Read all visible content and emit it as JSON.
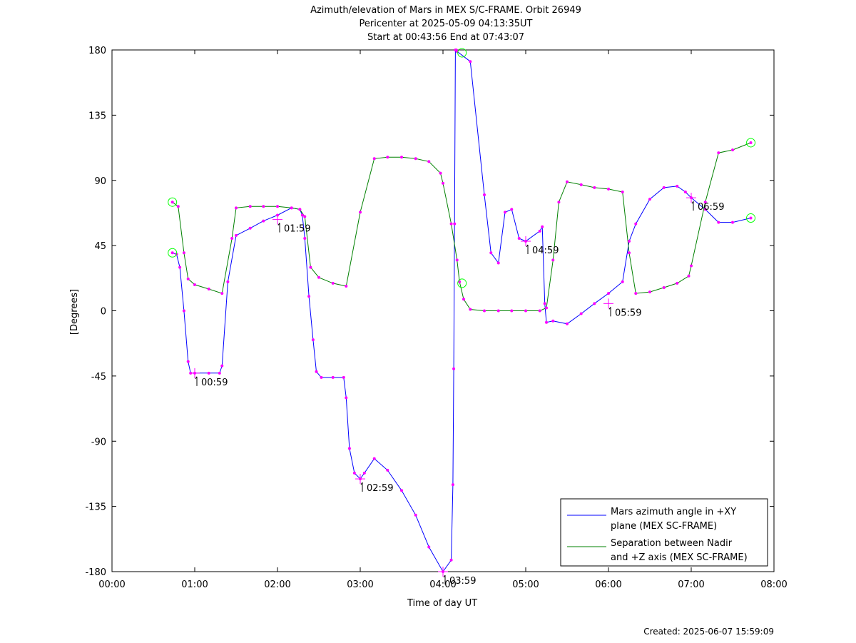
{
  "chart_data": {
    "type": "line",
    "title_lines": [
      "Azimuth/elevation of Mars in MEX S/C-FRAME.  Orbit 26949",
      "Pericenter at 2025-05-09 04:13:35UT",
      "Start at 00:43:56 End at 07:43:07"
    ],
    "xlabel": "Time of day UT",
    "ylabel": "[Degrees]",
    "xlim": [
      0,
      8
    ],
    "ylim": [
      -180,
      180
    ],
    "x_ticks": [
      {
        "v": 0,
        "label": "00:00"
      },
      {
        "v": 1,
        "label": "01:00"
      },
      {
        "v": 2,
        "label": "02:00"
      },
      {
        "v": 3,
        "label": "03:00"
      },
      {
        "v": 4,
        "label": "04:00"
      },
      {
        "v": 5,
        "label": "05:00"
      },
      {
        "v": 6,
        "label": "06:00"
      },
      {
        "v": 7,
        "label": "07:00"
      },
      {
        "v": 8,
        "label": "08:00"
      }
    ],
    "y_ticks": [
      {
        "v": 180,
        "label": "180"
      },
      {
        "v": 135,
        "label": "135"
      },
      {
        "v": 90,
        "label": "90"
      },
      {
        "v": 45,
        "label": "45"
      },
      {
        "v": 0,
        "label": "0"
      },
      {
        "v": -45,
        "label": "-45"
      },
      {
        "v": -90,
        "label": "-90"
      },
      {
        "v": -135,
        "label": "-135"
      },
      {
        "v": -180,
        "label": "-180"
      }
    ],
    "grid": false,
    "legend_position": "bottom-right",
    "series": [
      {
        "name": "Mars azimuth angle in +XY plane (MEX SC-FRAME)",
        "legend_lines": [
          "Mars azimuth angle in +XY",
          "plane (MEX SC-FRAME)"
        ],
        "color": "#0000ff",
        "x": [
          0.73,
          0.78,
          0.82,
          0.87,
          0.92,
          0.95,
          1.0,
          1.17,
          1.3,
          1.33,
          1.4,
          1.5,
          1.67,
          1.83,
          2.0,
          2.17,
          2.27,
          2.3,
          2.33,
          2.38,
          2.43,
          2.47,
          2.53,
          2.67,
          2.8,
          2.83,
          2.87,
          2.93,
          3.0,
          3.05,
          3.17,
          3.33,
          3.5,
          3.67,
          3.83,
          4.0,
          4.1,
          4.12,
          4.13,
          4.14,
          4.15,
          4.16,
          4.17,
          4.33,
          4.5,
          4.58,
          4.67,
          4.75,
          4.83,
          4.92,
          5.0,
          5.17,
          5.2,
          5.23,
          5.25,
          5.33,
          5.5,
          5.67,
          5.83,
          6.0,
          6.17,
          6.25,
          6.33,
          6.5,
          6.67,
          6.83,
          6.93,
          7.0,
          7.17,
          7.33,
          7.5,
          7.72
        ],
        "y": [
          40,
          39,
          30,
          0,
          -35,
          -43,
          -43,
          -43,
          -43,
          -38,
          20,
          52,
          57,
          62,
          66,
          71,
          70,
          66,
          50,
          10,
          -20,
          -42,
          -46,
          -46,
          -46,
          -60,
          -95,
          -112,
          -116,
          -112,
          -102,
          -110,
          -124,
          -141,
          -163,
          -180,
          -172,
          -120,
          -40,
          60,
          180,
          180,
          179,
          172,
          80,
          40,
          33,
          68,
          70,
          50,
          48,
          55,
          58,
          5,
          -8,
          -7,
          -9,
          -2,
          5,
          12,
          20,
          48,
          60,
          77,
          85,
          86,
          82,
          78,
          70,
          61,
          61,
          64
        ]
      },
      {
        "name": "Separation between Nadir and +Z axis (MEX SC-FRAME)",
        "legend_lines": [
          "Separation between Nadir",
          "and +Z axis (MEX SC-FRAME)"
        ],
        "color": "#008000",
        "x": [
          0.73,
          0.8,
          0.87,
          0.92,
          1.0,
          1.17,
          1.33,
          1.45,
          1.5,
          1.67,
          1.83,
          2.0,
          2.17,
          2.27,
          2.33,
          2.4,
          2.5,
          2.67,
          2.83,
          3.0,
          3.17,
          3.33,
          3.5,
          3.67,
          3.83,
          3.97,
          4.0,
          4.1,
          4.17,
          4.2,
          4.25,
          4.33,
          4.5,
          4.67,
          4.83,
          5.0,
          5.17,
          5.25,
          5.33,
          5.4,
          5.5,
          5.67,
          5.83,
          6.0,
          6.17,
          6.25,
          6.33,
          6.5,
          6.67,
          6.83,
          6.97,
          7.0,
          7.17,
          7.33,
          7.5,
          7.72
        ],
        "y": [
          75,
          72,
          40,
          22,
          18,
          15,
          12,
          50,
          71,
          72,
          72,
          72,
          71,
          70,
          65,
          30,
          23,
          19,
          17,
          68,
          105,
          106,
          106,
          105,
          103,
          95,
          88,
          60,
          35,
          20,
          8,
          1,
          0,
          0,
          0,
          0,
          0,
          2,
          35,
          75,
          89,
          87,
          85,
          84,
          82,
          40,
          12,
          13,
          16,
          19,
          24,
          31,
          75,
          109,
          111,
          116
        ]
      }
    ],
    "time_markers": [
      {
        "x": 1.0,
        "y": -43,
        "label": "00:59"
      },
      {
        "x": 2.0,
        "y": 63,
        "label": "01:59"
      },
      {
        "x": 3.0,
        "y": -116,
        "label": "02:59"
      },
      {
        "x": 4.0,
        "y": -180,
        "label": "03:59"
      },
      {
        "x": 5.0,
        "y": 48,
        "label": "04:59"
      },
      {
        "x": 6.0,
        "y": 5,
        "label": "05:59"
      },
      {
        "x": 7.0,
        "y": 78,
        "label": "06:59"
      }
    ],
    "circle_markers": [
      {
        "x": 0.73,
        "y": 40
      },
      {
        "x": 0.73,
        "y": 75
      },
      {
        "x": 4.23,
        "y": 178
      },
      {
        "x": 4.23,
        "y": 19
      },
      {
        "x": 7.72,
        "y": 116
      },
      {
        "x": 7.72,
        "y": 64
      }
    ],
    "footer": "Created: 2025-06-07 15:59:09",
    "colors": {
      "dots": "#ff00ff",
      "circles": "#00ff00"
    }
  }
}
